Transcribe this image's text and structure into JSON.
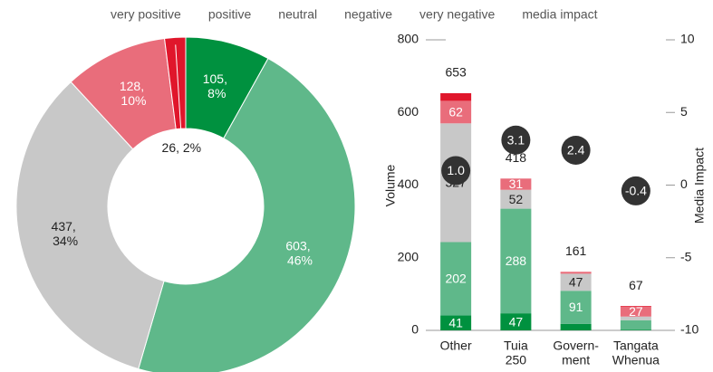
{
  "chart_data": [
    {
      "type": "pie",
      "values": [
        105,
        603,
        437,
        128,
        26
      ],
      "value_labels": [
        "105, 8%",
        "603, 46%",
        "437, 34%",
        "128, 10%",
        "26, 2%"
      ],
      "colors": [
        "#00913f",
        "#5fb88a",
        "#c8c8c8",
        "#e96d7b",
        "#e0162b"
      ]
    },
    {
      "type": "bar",
      "stacked": true,
      "categories": [
        [
          "Other"
        ],
        [
          "Tuia",
          "250"
        ],
        [
          "Govern-",
          "ment"
        ],
        [
          "Tangata",
          "Whenua"
        ]
      ],
      "series": [
        {
          "name": "very positive",
          "color": "#00913f",
          "values": [
            41,
            47,
            18,
            2
          ]
        },
        {
          "name": "positive",
          "color": "#5fb88a",
          "values": [
            202,
            288,
            91,
            26
          ]
        },
        {
          "name": "neutral",
          "color": "#c8c8c8",
          "values": [
            327,
            52,
            47,
            10
          ]
        },
        {
          "name": "negative",
          "color": "#e96d7b",
          "values": [
            62,
            31,
            4,
            27
          ]
        },
        {
          "name": "very negative",
          "color": "#e0162b",
          "values": [
            21,
            0,
            1,
            2
          ]
        },
        {
          "name": "media impact",
          "color": "#333333",
          "axis": "y2",
          "values": [
            1.0,
            3.1,
            2.4,
            -0.4
          ],
          "value_labels": [
            "1.0",
            "3.1",
            "2.4",
            "-0.4"
          ]
        }
      ],
      "totals": [
        653,
        418,
        161,
        67
      ],
      "ylabel": "Volume",
      "y2label": "Media Impact",
      "ylim": [
        0,
        800
      ],
      "yticks": [
        0,
        200,
        400,
        600,
        800
      ],
      "y2lim": [
        -10,
        10
      ],
      "y2ticks": [
        -10,
        -5,
        0,
        5,
        10
      ]
    }
  ]
}
